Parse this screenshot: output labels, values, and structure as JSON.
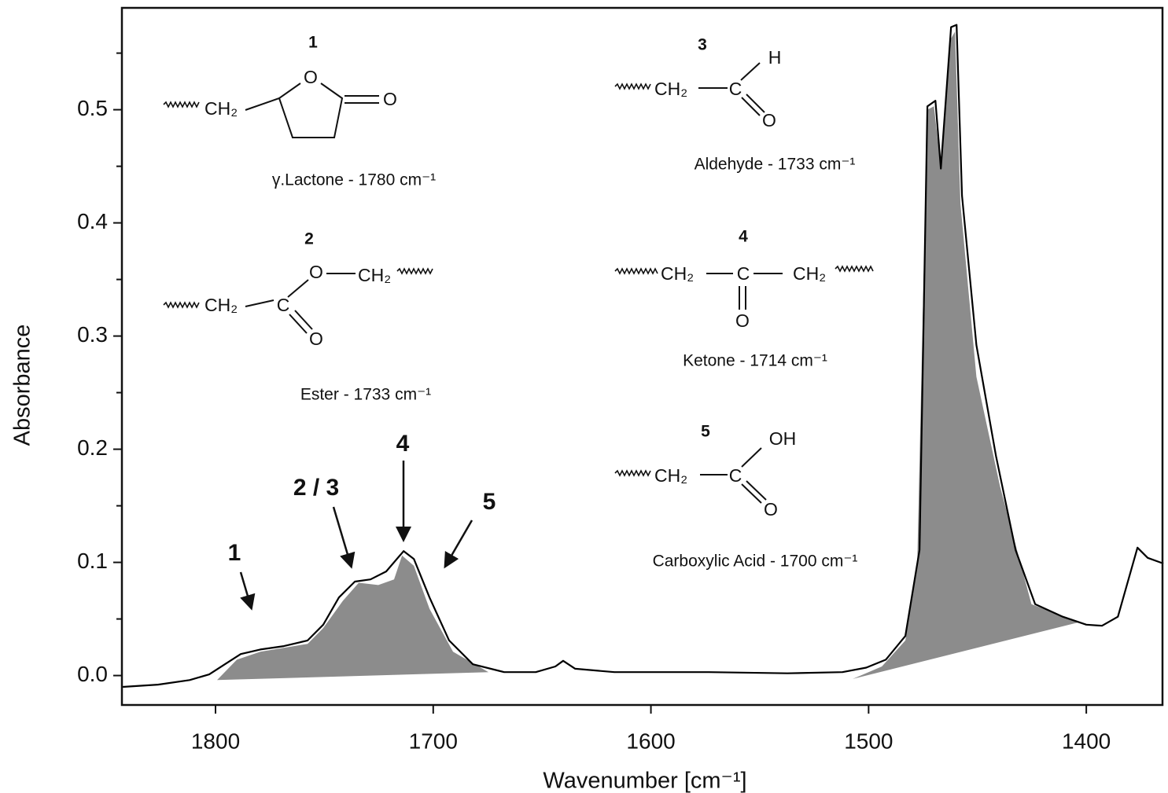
{
  "chart_data": {
    "type": "line",
    "xlabel": "Wavenumber [cm⁻¹]",
    "ylabel": "Absorbance",
    "xlim": [
      1843,
      1365
    ],
    "ylim": [
      -0.026,
      0.59
    ],
    "xticks": [
      1800,
      1700,
      1600,
      1500,
      1400
    ],
    "yticks": [
      {
        "value": 0,
        "label": "0.0"
      },
      0.1,
      0.2,
      0.3,
      0.4,
      0.5
    ],
    "yminorticks": [
      0.05,
      0.15,
      0.25,
      0.35,
      0.45,
      0.55
    ],
    "series": [
      {
        "color": "#8c8c8c",
        "fill": true,
        "x": [
          1799.3,
          1790.2,
          1779.4,
          1757.7,
          1750.5,
          1741.5,
          1734.2,
          1725.2,
          1718.0,
          1714.3,
          1708.9,
          1701.7,
          1690.9,
          1674.6
        ],
        "values": [
          -0.004,
          0.014,
          0.021,
          0.028,
          0.042,
          0.066,
          0.082,
          0.08,
          0.085,
          0.106,
          0.097,
          0.059,
          0.021,
          0.003
        ]
      },
      {
        "color": "#8c8c8c",
        "fill": true,
        "x": [
          1507.3,
          1493.9,
          1483.1,
          1477.7,
          1473.0,
          1470.0,
          1466.8,
          1462.1,
          1460.3,
          1457.8,
          1450.5,
          1439.6,
          1425.2,
          1403.6
        ],
        "values": [
          -0.003,
          0.008,
          0.031,
          0.097,
          0.5,
          0.503,
          0.448,
          0.563,
          0.569,
          0.417,
          0.264,
          0.167,
          0.063,
          0.047
        ]
      },
      {
        "color": "#000000",
        "x": [
          1842.6,
          1826.4,
          1811.9,
          1802.9,
          1795.7,
          1788.4,
          1779.4,
          1768.6,
          1757.7,
          1750.5,
          1743.3,
          1736.0,
          1728.8,
          1721.6,
          1713.6,
          1708.9,
          1701.7,
          1692.7,
          1681.8,
          1667.4,
          1652.9,
          1643.9,
          1640.3,
          1634.8,
          1616.8,
          1573.4,
          1537.3,
          1512.0,
          1501.1,
          1492.1,
          1483.1,
          1476.6,
          1473.0,
          1469.3,
          1466.8,
          1462.1,
          1459.6,
          1457.1,
          1450.5,
          1441.5,
          1432.5,
          1423.5,
          1410.8,
          1400.0,
          1392.8,
          1385.5,
          1376.5,
          1371.8,
          1364.6
        ],
        "values": [
          -0.01,
          -0.008,
          -0.004,
          0.001,
          0.01,
          0.019,
          0.023,
          0.026,
          0.031,
          0.045,
          0.069,
          0.083,
          0.085,
          0.092,
          0.11,
          0.103,
          0.069,
          0.031,
          0.01,
          0.003,
          0.003,
          0.008,
          0.013,
          0.006,
          0.003,
          0.003,
          0.002,
          0.003,
          0.007,
          0.014,
          0.035,
          0.111,
          0.503,
          0.508,
          0.448,
          0.573,
          0.575,
          0.424,
          0.292,
          0.194,
          0.111,
          0.063,
          0.052,
          0.045,
          0.044,
          0.052,
          0.113,
          0.104,
          0.099
        ]
      }
    ],
    "annotations": [
      "1",
      "2 / 3",
      "4",
      "5"
    ],
    "structures": [
      {
        "number": "1",
        "caption": "γ.Lactone - 1780 cm⁻¹",
        "atoms": [
          "CH₂",
          "O",
          "O"
        ]
      },
      {
        "number": "2",
        "caption": "Ester - 1733 cm⁻¹",
        "atoms": [
          "CH₂",
          "C",
          "O",
          "CH₂",
          "O"
        ]
      },
      {
        "number": "3",
        "caption": "Aldehyde - 1733 cm⁻¹",
        "atoms": [
          "CH₂",
          "C",
          "H",
          "O"
        ]
      },
      {
        "number": "4",
        "caption": "Ketone - 1714 cm⁻¹",
        "atoms": [
          "CH₂",
          "C",
          "CH₂",
          "O"
        ]
      },
      {
        "number": "5",
        "caption": "Carboxylic Acid - 1700 cm⁻¹",
        "atoms": [
          "CH₂",
          "C",
          "OH",
          "O"
        ]
      }
    ]
  }
}
